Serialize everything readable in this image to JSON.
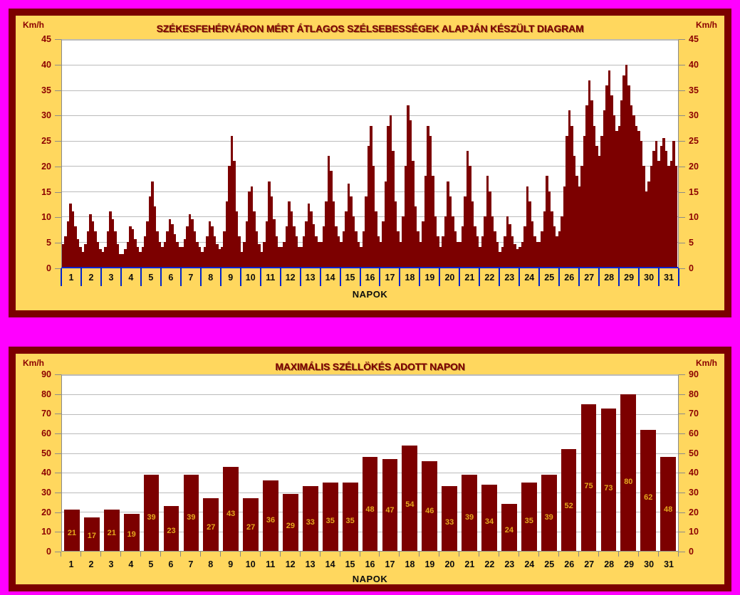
{
  "page": {
    "background": "#FF00FF"
  },
  "colors": {
    "magenta": "#FF00FF",
    "maroon": "#7C0000",
    "gold": "#FFD75E",
    "plot_bg": "#FFFFFF",
    "grid": "#BBBBBB",
    "axis_gray": "#8A8A8A",
    "axis_blue": "#0022CC",
    "tick_text": "#8B0000",
    "day_text": "#0D0D0D",
    "bar": "#7C0000",
    "bar_label": "#E4A81E",
    "title_text": "#7C0000"
  },
  "chart_data": [
    {
      "type": "bar",
      "title": "SZÉKESFEHÉRVÁRON MÉRT ÁTLAGOS SZÉLSEBESSÉGEK ALAPJÁN KÉSZÜLT DIAGRAM",
      "ylabel": "Km/h",
      "xlabel": "NAPOK",
      "ylim": [
        0,
        45
      ],
      "ytick_step": 5,
      "yticks": [
        0,
        5,
        10,
        15,
        20,
        25,
        30,
        35,
        40,
        45
      ],
      "grid": "horizontal",
      "legend": "none",
      "categories": [
        "1",
        "2",
        "3",
        "4",
        "5",
        "6",
        "7",
        "8",
        "9",
        "10",
        "11",
        "12",
        "13",
        "14",
        "15",
        "16",
        "17",
        "18",
        "19",
        "20",
        "21",
        "22",
        "23",
        "24",
        "25",
        "26",
        "27",
        "28",
        "29",
        "30",
        "31"
      ],
      "samples_per_day": 8,
      "values": [
        4.5,
        6,
        9,
        12.5,
        11,
        8,
        5.5,
        4,
        3,
        4.5,
        7,
        10.5,
        9,
        7,
        5,
        3.5,
        3,
        4,
        7,
        11,
        9.5,
        7,
        4.5,
        2.5,
        2.5,
        3.5,
        5,
        8,
        7.5,
        5.5,
        4,
        3,
        4,
        6,
        9,
        14,
        17,
        12,
        7,
        5,
        4,
        5,
        7,
        9.5,
        8.5,
        6.5,
        5,
        4,
        4,
        5.5,
        8,
        10.5,
        9.5,
        7,
        5,
        4,
        3,
        4,
        6,
        9,
        8,
        6,
        4.5,
        3.5,
        4,
        7,
        13,
        20,
        26,
        21,
        11,
        6,
        3,
        5,
        9,
        15,
        16,
        11,
        7,
        4.5,
        3,
        5,
        9,
        17,
        14,
        9.5,
        6,
        4,
        4,
        5,
        8,
        13,
        11,
        8,
        6,
        4,
        4,
        6,
        9,
        12.5,
        11,
        8.5,
        6,
        5,
        5,
        8,
        13,
        22,
        19,
        13,
        8,
        6,
        5,
        7,
        11,
        16.5,
        14,
        10,
        7,
        5,
        4,
        7,
        14,
        24,
        28,
        20,
        11,
        6,
        5,
        9,
        17,
        28,
        30,
        23,
        13,
        7,
        5,
        10,
        20,
        32,
        29,
        21,
        12,
        7,
        5,
        9,
        18,
        28,
        26,
        18,
        10,
        6,
        4,
        6,
        10,
        17,
        14,
        10,
        7,
        5,
        5,
        8,
        14,
        23,
        20,
        13,
        8,
        6,
        4,
        6,
        10,
        18,
        15,
        10,
        7,
        5,
        3,
        4,
        6,
        10,
        8.5,
        6,
        4.5,
        3.5,
        4,
        5,
        8,
        16,
        13,
        9,
        6,
        5,
        5,
        7,
        11,
        18,
        15,
        11,
        8,
        6,
        7,
        10,
        16,
        26,
        31,
        28,
        22,
        18,
        16,
        20,
        26,
        32,
        37,
        33,
        28,
        24,
        22,
        26,
        31,
        36,
        39,
        34,
        30,
        27,
        28,
        33,
        38,
        40,
        36,
        32,
        30,
        28,
        27,
        25,
        20,
        15,
        17,
        20,
        23,
        25,
        21,
        24,
        25.5,
        23,
        20,
        21,
        25,
        20
      ]
    },
    {
      "type": "bar",
      "title": "MAXIMÁLIS SZÉLLÖKÉS ADOTT NAPON",
      "ylabel": "Km/h",
      "xlabel": "NAPOK",
      "ylim": [
        0,
        90
      ],
      "ytick_step": 10,
      "yticks": [
        0,
        10,
        20,
        30,
        40,
        50,
        60,
        70,
        80,
        90
      ],
      "grid": "horizontal",
      "legend": "none",
      "categories": [
        "1",
        "2",
        "3",
        "4",
        "5",
        "6",
        "7",
        "8",
        "9",
        "10",
        "11",
        "12",
        "13",
        "14",
        "15",
        "16",
        "17",
        "18",
        "19",
        "20",
        "21",
        "22",
        "23",
        "24",
        "25",
        "26",
        "27",
        "28",
        "29",
        "30",
        "31"
      ],
      "values": [
        21,
        17,
        21,
        19,
        39,
        23,
        39,
        27,
        43,
        27,
        36,
        29,
        33,
        35,
        35,
        48,
        47,
        54,
        46,
        33,
        39,
        34,
        24,
        35,
        39,
        52,
        75,
        73,
        80,
        62,
        48
      ],
      "bar_value_labels": true
    }
  ]
}
